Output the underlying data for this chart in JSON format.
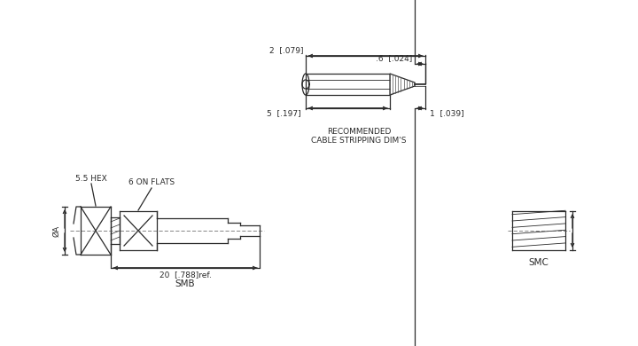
{
  "bg_color": "#ffffff",
  "line_color": "#2a2a2a",
  "text_color": "#2a2a2a",
  "cable_strip": {
    "label_rec": "RECOMMENDED\nCABLE STRIPPING DIM'S",
    "dim_2": "2  [.079]",
    "dim_06": ".6  [.024]",
    "dim_5": "5  [.197]",
    "dim_1": "1  [.039]"
  },
  "smb": {
    "label": "SMB",
    "dim_20": "20  [.788]ref.",
    "label_hex": "5.5 HEX",
    "label_flats": "6 ON FLATS",
    "label_dia": "ØA"
  },
  "smc": {
    "label": "SMC"
  }
}
